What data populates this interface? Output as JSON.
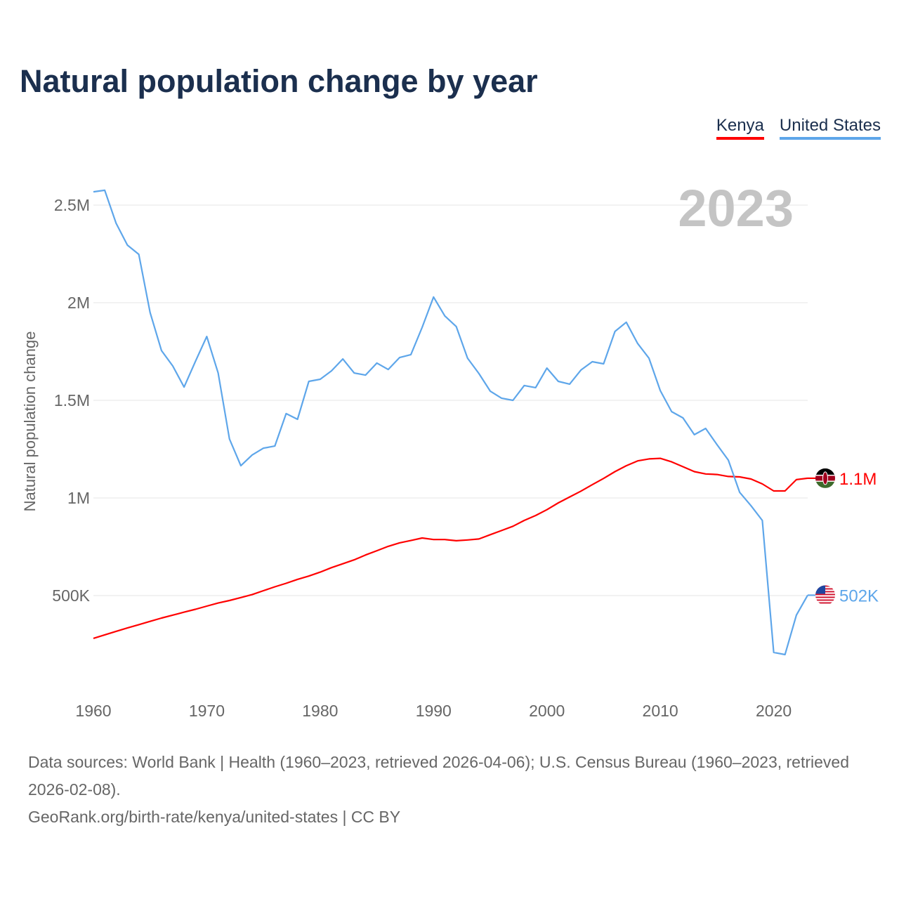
{
  "chart_data": {
    "type": "line",
    "title": "Natural population change by year",
    "xlabel": "",
    "ylabel": "Natural population change",
    "xlim": [
      1960,
      2023
    ],
    "ylim": [
      0,
      2700000
    ],
    "grid": true,
    "legend_placement": "top-right",
    "highlight_year": "2023",
    "x_ticks": [
      "1960",
      "1970",
      "1980",
      "1990",
      "2000",
      "2010",
      "2020"
    ],
    "x_tick_values": [
      1960,
      1970,
      1980,
      1990,
      2000,
      2010,
      2020
    ],
    "y_ticks": [
      "500K",
      "1M",
      "1.5M",
      "2M",
      "2.5M"
    ],
    "y_tick_values": [
      500000,
      1000000,
      1500000,
      2000000,
      2500000
    ],
    "x": [
      1960,
      1961,
      1962,
      1963,
      1964,
      1965,
      1966,
      1967,
      1968,
      1969,
      1970,
      1971,
      1972,
      1973,
      1974,
      1975,
      1976,
      1977,
      1978,
      1979,
      1980,
      1981,
      1982,
      1983,
      1984,
      1985,
      1986,
      1987,
      1988,
      1989,
      1990,
      1991,
      1992,
      1993,
      1994,
      1995,
      1996,
      1997,
      1998,
      1999,
      2000,
      2001,
      2002,
      2003,
      2004,
      2005,
      2006,
      2007,
      2008,
      2009,
      2010,
      2011,
      2012,
      2013,
      2014,
      2015,
      2016,
      2017,
      2018,
      2019,
      2020,
      2021,
      2022,
      2023
    ],
    "series": [
      {
        "name": "Kenya",
        "color": "#ff0000",
        "end_label": "1.1M",
        "values": [
          281000,
          299000,
          317000,
          334000,
          351000,
          368000,
          385000,
          400000,
          415000,
          430000,
          446000,
          462000,
          475000,
          490000,
          505000,
          525000,
          545000,
          563000,
          583000,
          600000,
          620000,
          643000,
          663000,
          683000,
          708000,
          730000,
          752000,
          770000,
          782000,
          795000,
          787000,
          787000,
          781000,
          785000,
          790000,
          812000,
          833000,
          855000,
          885000,
          910000,
          940000,
          975000,
          1005000,
          1035000,
          1068000,
          1100000,
          1135000,
          1165000,
          1190000,
          1200000,
          1203000,
          1185000,
          1160000,
          1135000,
          1123000,
          1120000,
          1110000,
          1108000,
          1097000,
          1072000,
          1036000,
          1036000,
          1094000,
          1101000
        ]
      },
      {
        "name": "United States",
        "color": "#5ea6ea",
        "end_label": "502K",
        "values": [
          2568000,
          2576000,
          2407000,
          2295000,
          2248000,
          1950000,
          1755000,
          1676000,
          1568000,
          1700000,
          1827000,
          1640000,
          1302000,
          1165000,
          1220000,
          1255000,
          1266000,
          1432000,
          1403000,
          1597000,
          1608000,
          1651000,
          1712000,
          1640000,
          1629000,
          1691000,
          1658000,
          1719000,
          1734000,
          1874000,
          2029000,
          1932000,
          1878000,
          1716000,
          1637000,
          1547000,
          1511000,
          1500000,
          1576000,
          1565000,
          1665000,
          1597000,
          1583000,
          1655000,
          1698000,
          1687000,
          1853000,
          1900000,
          1791000,
          1716000,
          1550000,
          1442000,
          1410000,
          1324000,
          1356000,
          1273000,
          1194000,
          1029000,
          960000,
          885000,
          209000,
          198000,
          400000,
          502000
        ]
      }
    ]
  },
  "footer": {
    "sources": "Data sources: World Bank | Health (1960–2023, retrieved 2026-04-06); U.S. Census Bureau (1960–2023, retrieved 2026-02-08).",
    "link": "GeoRank.org/birth-rate/kenya/united-states | CC BY"
  },
  "icons": {
    "kenya": "kenya-flag-icon",
    "us": "us-flag-icon"
  }
}
